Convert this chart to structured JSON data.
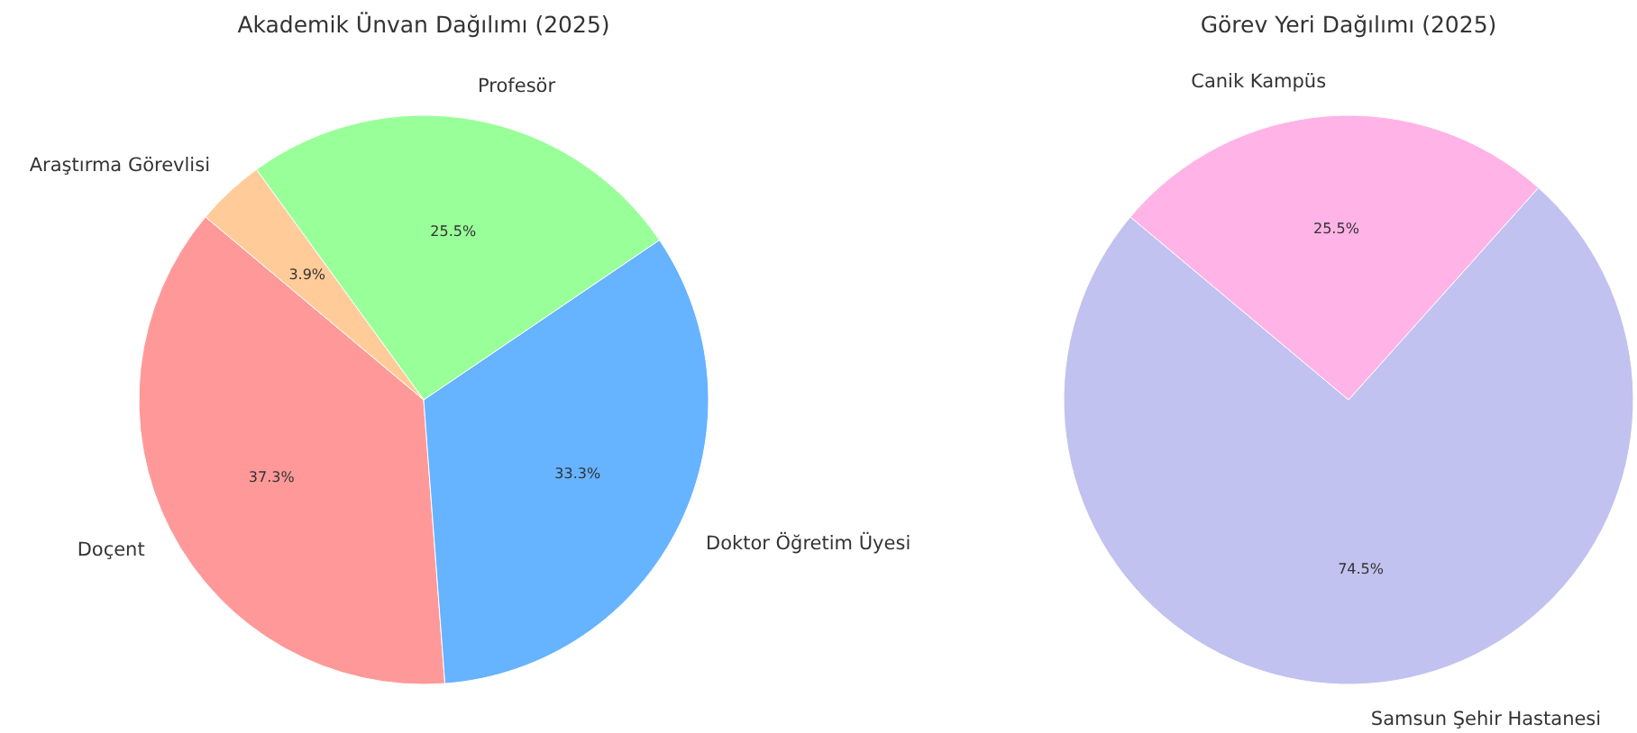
{
  "chart_data": [
    {
      "type": "pie",
      "title": "Akademik Ünvan Dağılımı (2025)",
      "categories": [
        "Doçent",
        "Doktor Öğretim Üyesi",
        "Profesör",
        "Araştırma Görevlisi"
      ],
      "values": [
        37.3,
        33.3,
        25.5,
        3.9
      ],
      "colors": [
        "#ff9999",
        "#66b3ff",
        "#99ff99",
        "#ffcc99"
      ],
      "value_labels": [
        "37.3%",
        "33.3%",
        "25.5%",
        "3.9%"
      ]
    },
    {
      "type": "pie",
      "title": "Görev Yeri Dağılımı (2025)",
      "categories": [
        "Samsun Şehir Hastanesi",
        "Canik Kampüs"
      ],
      "values": [
        74.5,
        25.5
      ],
      "colors": [
        "#c2c2f0",
        "#ffb3e6"
      ],
      "value_labels": [
        "74.5%",
        "25.5%"
      ]
    }
  ]
}
